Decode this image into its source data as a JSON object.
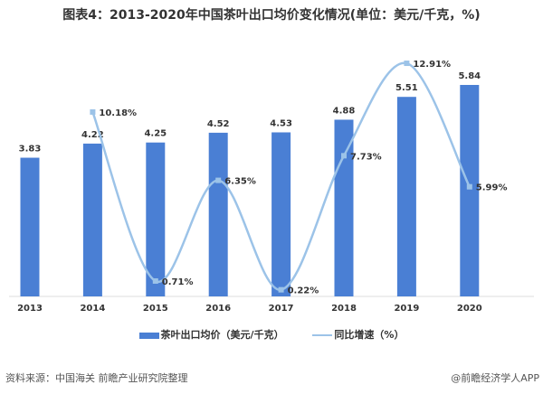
{
  "chart_data": {
    "type": "bar+line",
    "title": "图表4：2013-2020年中国茶叶出口均价变化情况(单位：美元/千克，%)",
    "categories": [
      "2013",
      "2014",
      "2015",
      "2016",
      "2017",
      "2018",
      "2019",
      "2020"
    ],
    "series": [
      {
        "name": "茶叶出口均价（美元/千克）",
        "type": "bar",
        "color": "#4a7fd4",
        "values": [
          3.83,
          4.22,
          4.25,
          4.52,
          4.53,
          4.88,
          5.51,
          5.84
        ],
        "labels": [
          "3.83",
          "4.22",
          "4.25",
          "4.52",
          "4.53",
          "4.88",
          "5.51",
          "5.84"
        ]
      },
      {
        "name": "同比增速（%）",
        "type": "line",
        "color": "#9cc3e8",
        "values": [
          null,
          10.18,
          0.71,
          6.35,
          0.22,
          7.73,
          12.91,
          5.99
        ],
        "labels": [
          "",
          "10.18%",
          "0.71%",
          "6.35%",
          "0.22%",
          "7.73%",
          "12.91%",
          "5.99%"
        ]
      }
    ],
    "legend": "bottom-center",
    "grid": false
  },
  "footer": {
    "source": "资料来源：中国海关 前瞻产业研究院整理",
    "credit": "@前瞻经济学人APP"
  }
}
